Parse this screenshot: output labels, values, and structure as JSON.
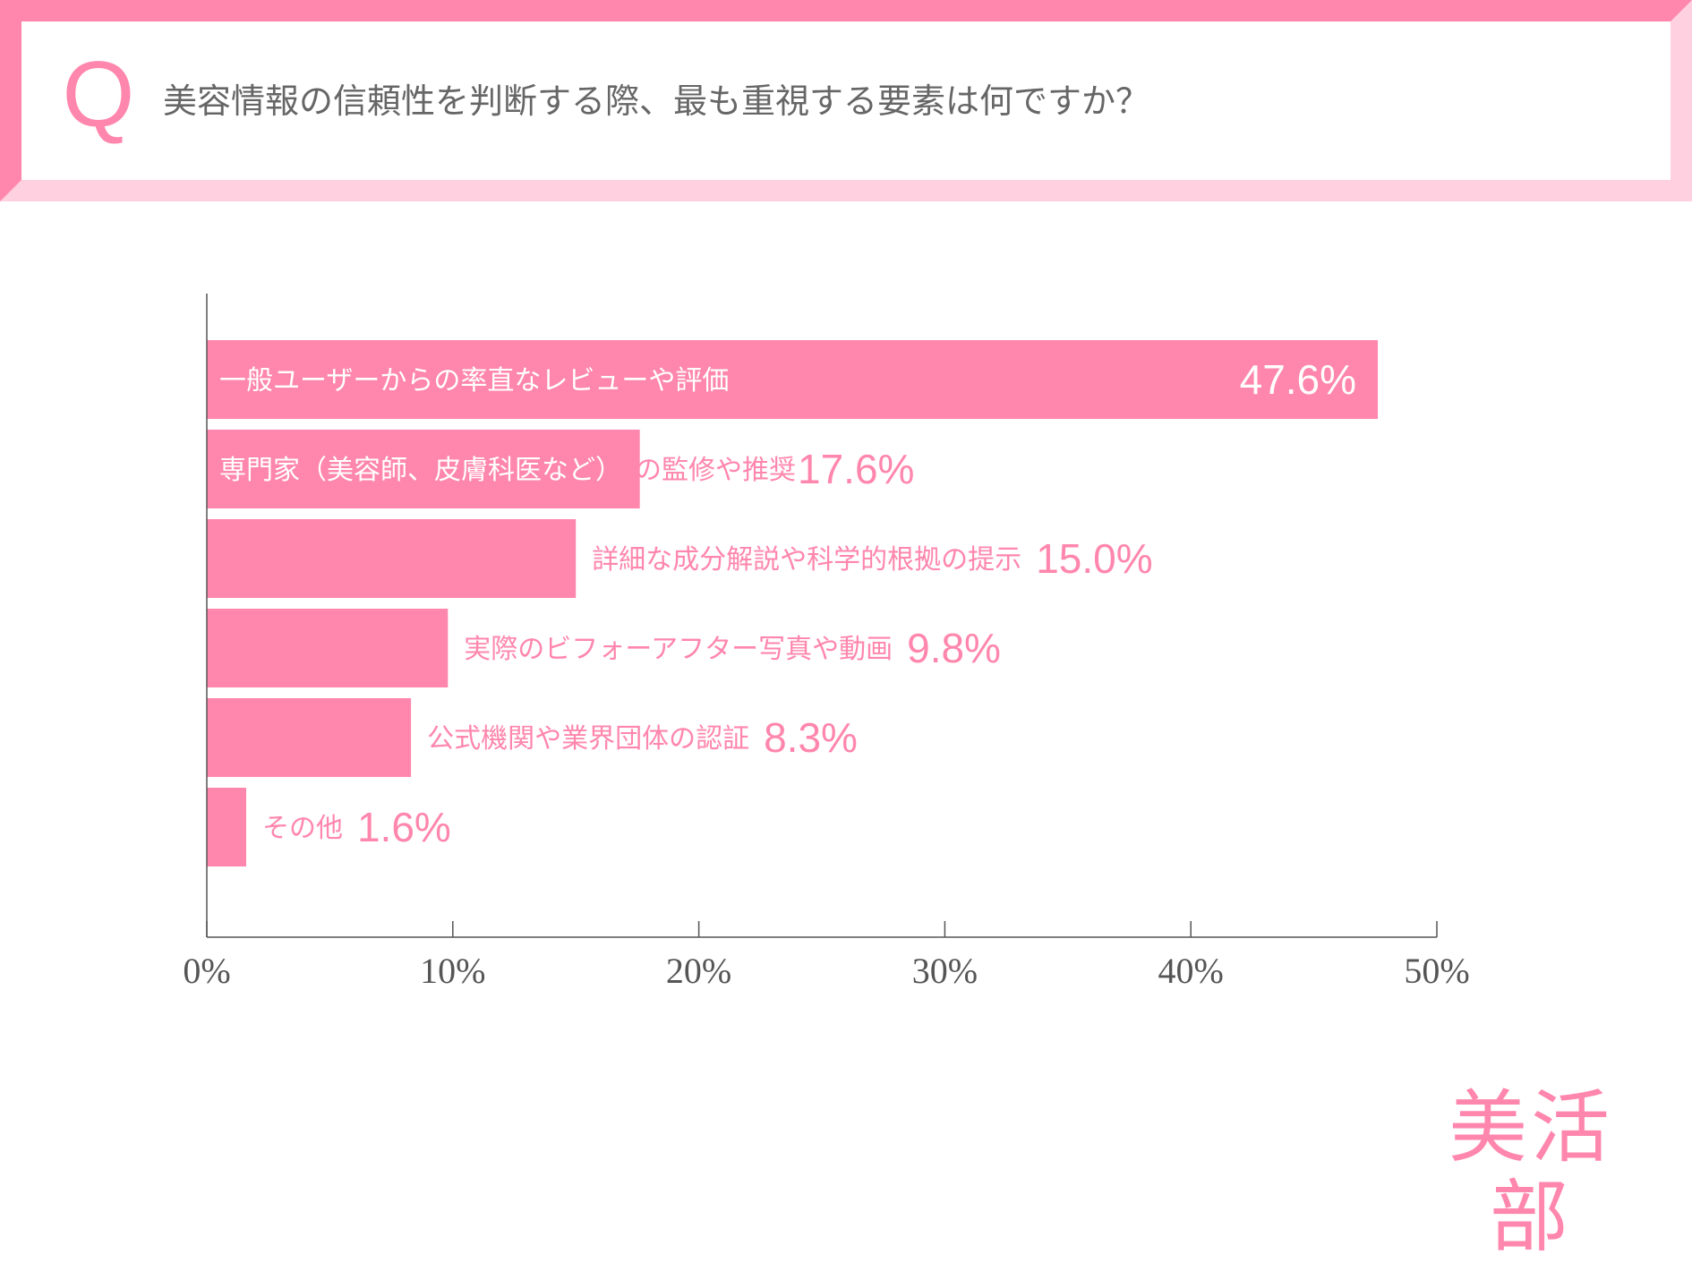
{
  "question": {
    "mark": "Q",
    "text": "美容情報の信頼性を判断する際、最も重視する要素は何ですか？"
  },
  "brand": "美活部",
  "colors": {
    "accent": "#ff86ad",
    "accent_light": "#ffd0df",
    "axis": "#555555",
    "question_text": "#666666"
  },
  "chart_data": {
    "type": "bar",
    "orientation": "horizontal",
    "categories": [
      "一般ユーザーからの率直なレビューや評価",
      "専門家（美容師、皮膚科医など）の監修や推奨",
      "詳細な成分解説や科学的根拠の提示",
      "実際のビフォーアフター写真や動画",
      "公式機関や業界団体の認証",
      "その他"
    ],
    "values": [
      47.6,
      17.6,
      15.0,
      9.8,
      8.3,
      1.6
    ],
    "value_labels": [
      "47.6%",
      "17.6%",
      "15.0%",
      "9.8%",
      "8.3%",
      "1.6%"
    ],
    "xlim": [
      0,
      50
    ],
    "xticks": [
      0,
      10,
      20,
      30,
      40,
      50
    ],
    "xtick_labels": [
      "0%",
      "10%",
      "20%",
      "30%",
      "40%",
      "50%"
    ],
    "grid": false,
    "bar_color": "#ff86ad"
  }
}
